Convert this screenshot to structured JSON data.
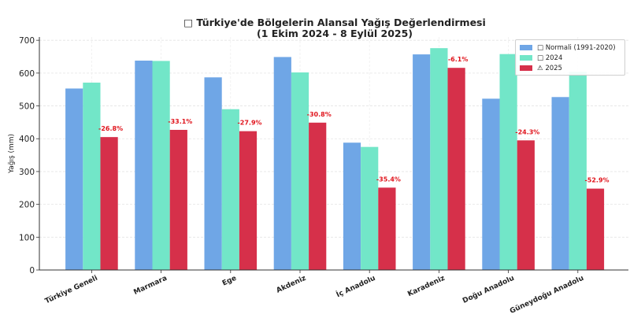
{
  "chart_data": {
    "type": "bar",
    "title": "□ Türkiye'de Bölgelerin Alansal Yağış Değerlendirmesi",
    "subtitle": "(1 Ekim 2024 - 8 Eylül 2025)",
    "xlabel": "",
    "ylabel": "Yağış (mm)",
    "ylim": [
      0,
      710
    ],
    "yticks": [
      0,
      100,
      200,
      300,
      400,
      500,
      600,
      700
    ],
    "grid": true,
    "legend_position": "top-right",
    "categories": [
      "Türkiye Geneli",
      "Marmara",
      "Ege",
      "Akdeniz",
      "İç Anadolu",
      "Karadeniz",
      "Doğu Anadolu",
      "Güneydoğu Anadolu"
    ],
    "series": [
      {
        "name": "□ Normali (1991-2020)",
        "color": "#6fa6e6",
        "values": [
          553,
          638,
          587,
          649,
          388,
          657,
          522,
          527
        ]
      },
      {
        "name": "□ 2024",
        "color": "#72e6c8",
        "values": [
          571,
          637,
          490,
          602,
          375,
          676,
          658,
          604
        ]
      },
      {
        "name": "⚠ 2025",
        "color": "#d6304a",
        "values": [
          405,
          427,
          423,
          449,
          251,
          616,
          395,
          248
        ]
      }
    ],
    "annotations": [
      "-26.8%",
      "-33.1%",
      "-27.9%",
      "-30.8%",
      "-35.4%",
      "-6.1%",
      "-24.3%",
      "-52.9%"
    ]
  }
}
